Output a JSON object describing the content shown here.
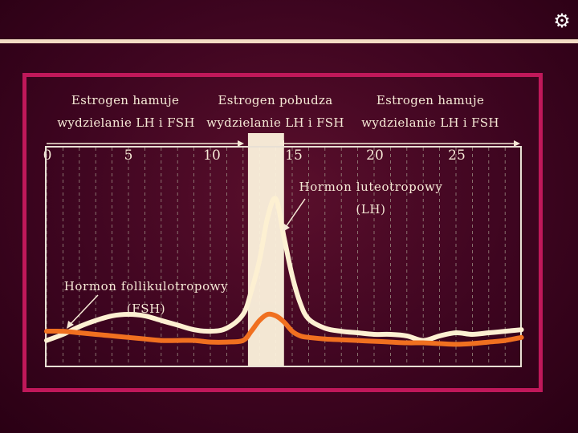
{
  "chart_data": {
    "type": "line",
    "x_ticks": [
      "0",
      "5",
      "10",
      "15",
      "20",
      "25"
    ],
    "xlim": [
      0,
      29
    ],
    "ylim": [
      0,
      100
    ],
    "grid": "dashed vertical",
    "regions": [
      {
        "label_line1": "Estrogen hamuje",
        "label_line2": "wydzielanie LH i FSH",
        "x_range": [
          0,
          12
        ]
      },
      {
        "label_line1": "Estrogen pobudza",
        "label_line2": "wydzielanie LH i FSH",
        "x_range": [
          12,
          14
        ]
      },
      {
        "label_line1": "Estrogen hamuje",
        "label_line2": "wydzielanie LH i FSH",
        "x_range": [
          14,
          29
        ]
      }
    ],
    "highlight_band": {
      "x_range": [
        12.3,
        14.5
      ],
      "color": "#fdf3dd"
    },
    "series": [
      {
        "key": "lh",
        "label_line1": "Hormon luteotropowy",
        "label_line2": "(LH)",
        "color": "#fdf0d2",
        "x": [
          0,
          1,
          2,
          3,
          4,
          5,
          6,
          7,
          8,
          9,
          10,
          11,
          12,
          12.5,
          13,
          13.5,
          14,
          14.5,
          15,
          15.5,
          16,
          17,
          18,
          19,
          20,
          21,
          22,
          23,
          24,
          25,
          26,
          27,
          28,
          29
        ],
        "y": [
          8,
          12,
          17,
          21,
          24,
          25,
          24,
          21,
          18,
          15,
          14,
          16,
          25,
          40,
          60,
          88,
          100,
          75,
          50,
          32,
          22,
          16,
          14,
          13,
          12,
          12,
          11,
          8,
          11,
          13,
          12,
          13,
          14,
          15
        ]
      },
      {
        "key": "fsh",
        "label_line1": "Hormon follikulotropowy",
        "label_line2": "(FSH)",
        "color": "#f07020",
        "x": [
          0,
          1,
          2,
          3,
          4,
          5,
          6,
          7,
          8,
          9,
          10,
          11,
          12,
          12.5,
          13,
          13.5,
          14,
          14.5,
          15,
          15.5,
          16,
          17,
          18,
          19,
          20,
          21,
          22,
          23,
          24,
          25,
          26,
          27,
          28,
          29
        ],
        "y": [
          14,
          14,
          13,
          12,
          11,
          10,
          9,
          8,
          8,
          8,
          7,
          7,
          8,
          14,
          21,
          25,
          24,
          20,
          14,
          11,
          10,
          9,
          8.5,
          8,
          7.5,
          7,
          6.5,
          6.5,
          6,
          5.5,
          6,
          7,
          8,
          10
        ]
      }
    ]
  },
  "colors": {
    "frame": "#c0185a",
    "text": "#f6e9d6",
    "grid": "#9a8a80",
    "plot_border": "#e8e0d4"
  },
  "icon": "gear-icon"
}
